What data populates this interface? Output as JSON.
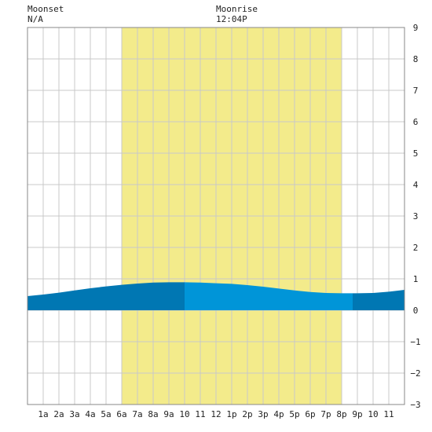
{
  "header": {
    "moonset_label": "Moonset",
    "moonset_value": "N/A",
    "moonrise_label": "Moonrise",
    "moonrise_value": "12:04P"
  },
  "colors": {
    "daylight": "#f3eb8b",
    "grid": "#c8c8c8",
    "tide_dark": "#0077b3",
    "tide_light": "#0095d8",
    "frame": "#888888"
  },
  "chart_data": {
    "type": "area",
    "title": "",
    "xlabel": "",
    "ylabel": "",
    "xlim": [
      0,
      24
    ],
    "ylim": [
      -3,
      9
    ],
    "grid": true,
    "daylight": {
      "start_hour": 6,
      "end_hour": 20
    },
    "x_ticks": [
      {
        "hour": 1,
        "label": "1a"
      },
      {
        "hour": 2,
        "label": "2a"
      },
      {
        "hour": 3,
        "label": "3a"
      },
      {
        "hour": 4,
        "label": "4a"
      },
      {
        "hour": 5,
        "label": "5a"
      },
      {
        "hour": 6,
        "label": "6a"
      },
      {
        "hour": 7,
        "label": "7a"
      },
      {
        "hour": 8,
        "label": "8a"
      },
      {
        "hour": 9,
        "label": "9a"
      },
      {
        "hour": 10,
        "label": "10"
      },
      {
        "hour": 11,
        "label": "11"
      },
      {
        "hour": 12,
        "label": "12"
      },
      {
        "hour": 13,
        "label": "1p"
      },
      {
        "hour": 14,
        "label": "2p"
      },
      {
        "hour": 15,
        "label": "3p"
      },
      {
        "hour": 16,
        "label": "4p"
      },
      {
        "hour": 17,
        "label": "5p"
      },
      {
        "hour": 18,
        "label": "6p"
      },
      {
        "hour": 19,
        "label": "7p"
      },
      {
        "hour": 20,
        "label": "8p"
      },
      {
        "hour": 21,
        "label": "9p"
      },
      {
        "hour": 22,
        "label": "10"
      },
      {
        "hour": 23,
        "label": "11"
      }
    ],
    "y_ticks": [
      9,
      8,
      7,
      6,
      5,
      4,
      3,
      2,
      1,
      0,
      -1,
      -2,
      -3
    ],
    "tide": {
      "x": [
        0,
        1,
        2,
        3,
        4,
        5,
        6,
        7,
        8,
        9,
        10,
        11,
        12,
        13,
        14,
        15,
        16,
        17,
        18,
        19,
        20,
        21,
        22,
        23,
        24
      ],
      "y": [
        0.45,
        0.5,
        0.56,
        0.63,
        0.7,
        0.76,
        0.81,
        0.85,
        0.88,
        0.89,
        0.89,
        0.88,
        0.86,
        0.84,
        0.8,
        0.75,
        0.69,
        0.63,
        0.58,
        0.55,
        0.54,
        0.54,
        0.55,
        0.59,
        0.65
      ],
      "segments": [
        {
          "from": 0,
          "to": 10,
          "shade": "dark"
        },
        {
          "from": 10,
          "to": 20.7,
          "shade": "light"
        },
        {
          "from": 20.7,
          "to": 24,
          "shade": "dark"
        }
      ]
    }
  }
}
